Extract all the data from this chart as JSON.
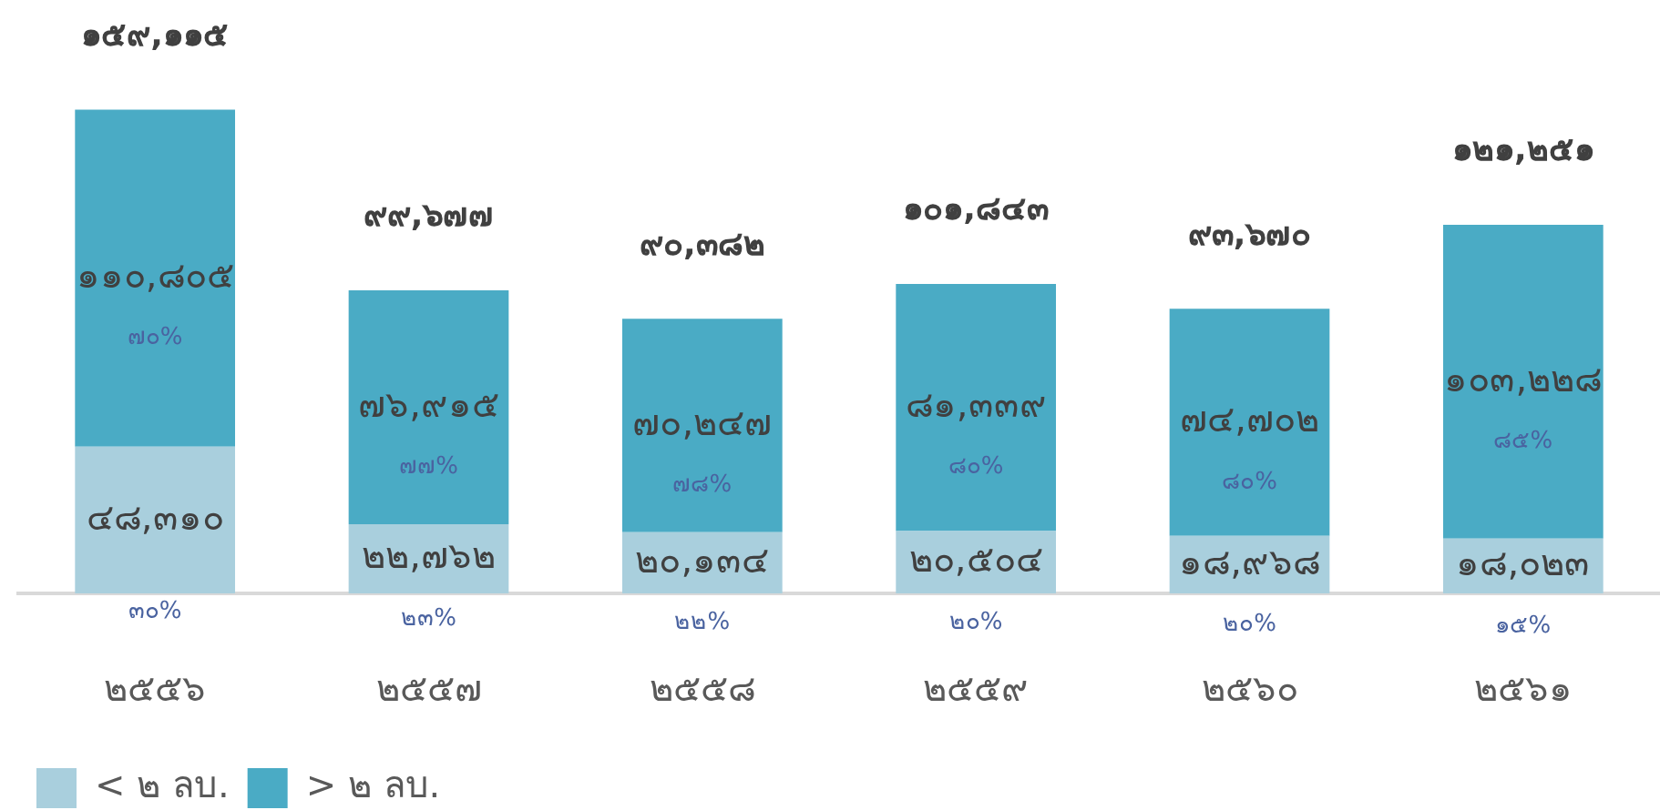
{
  "chart_data": {
    "type": "bar",
    "stacked": true,
    "categories": [
      "๒๕๕๖",
      "๒๕๕๗",
      "๒๕๕๘",
      "๒๕๕๙",
      "๒๕๖๐",
      "๒๕๖๑"
    ],
    "series": [
      {
        "name": "< ๒ ลบ.",
        "color": "#a9cfdd",
        "values": [
          48310,
          22762,
          20134,
          20504,
          18968,
          18023
        ],
        "value_labels": [
          "๔๘,๓๑๐",
          "๒๒,๗๖๒",
          "๒๐,๑๓๔",
          "๒๐,๕๐๔",
          "๑๘,๙๖๘",
          "๑๘,๐๒๓"
        ]
      },
      {
        "name": "> ๒ ลบ.",
        "color": "#4aabc5",
        "values": [
          110805,
          76915,
          70247,
          81339,
          74702,
          103228
        ],
        "value_labels": [
          "๑๑๐,๘๐๕",
          "๗๖,๙๑๕",
          "๗๐,๒๔๗",
          "๘๑,๓๓๙",
          "๗๔,๗๐๒",
          "๑๐๓,๒๒๘"
        ]
      }
    ],
    "totals": [
      "๑๕๙,๑๑๕",
      "๙๙,๖๗๗",
      "๙๐,๓๘๒",
      "๑๐๑,๘๔๓",
      "๙๓,๖๗๐",
      "๑๒๑,๒๕๑"
    ],
    "annotations": [
      "๓๐%",
      "๗๐%",
      "๒๓%",
      "๗๗%",
      "๒๒%",
      "๗๘%",
      "๒๐%",
      "๘๐%",
      "๒๐%",
      "๘๐%",
      "๑๕%",
      "๘๕%"
    ],
    "legend": "bottom left",
    "grid": false,
    "tick_labels": "x"
  }
}
